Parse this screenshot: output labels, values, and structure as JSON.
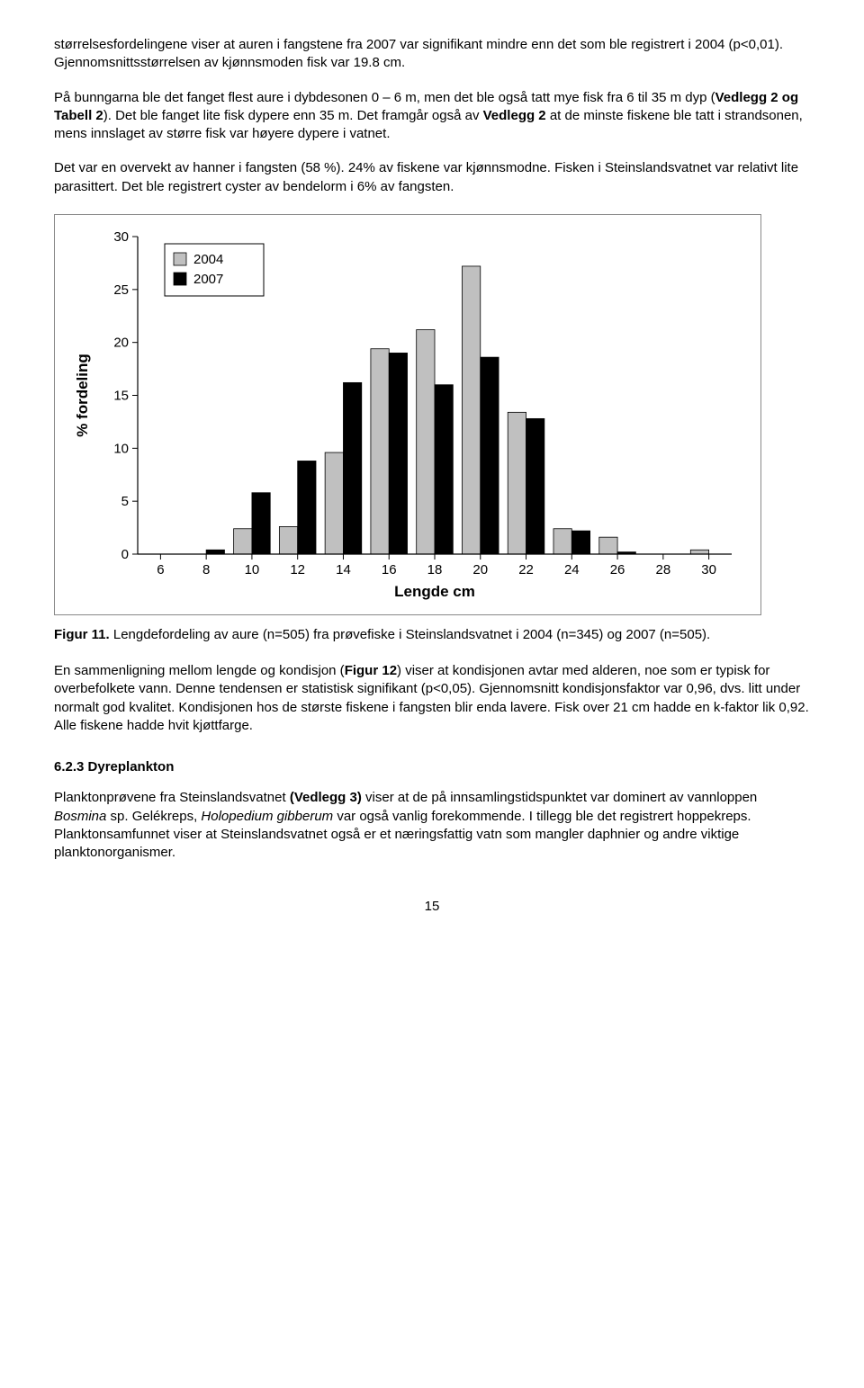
{
  "para1": "størrelsesfordelingene viser at auren i fangstene fra 2007 var signifikant mindre enn det som ble registrert i 2004 (p<0,01). Gjennomsnittsstørrelsen av kjønnsmoden fisk var 19.8 cm.",
  "para2_a": "På bunngarna ble det fanget flest aure i dybdesonen 0 – 6 m, men det ble også tatt mye fisk fra 6 til 35 m dyp (",
  "para2_b1": "Vedlegg 2 og Tabell 2",
  "para2_c": "). Det ble fanget lite fisk dypere enn 35 m. Det framgår også av ",
  "para2_b2": "Vedlegg 2",
  "para2_d": " at de minste fiskene ble tatt i strandsonen, mens innslaget av større fisk var høyere dypere i vatnet.",
  "para3": "Det var en overvekt av hanner i fangsten (58 %). 24% av fiskene var kjønnsmodne. Fisken i Steinslandsvatnet var relativt lite parasittert. Det ble registrert cyster av bendelorm i 6% av fangsten.",
  "chart": {
    "type": "bar",
    "categories": [
      6,
      8,
      10,
      12,
      14,
      16,
      18,
      20,
      22,
      24,
      26,
      28,
      30
    ],
    "series": [
      {
        "name": "2004",
        "color": "#c0c0c0",
        "stroke": "#000000",
        "values": [
          0,
          0,
          2.4,
          2.6,
          9.6,
          19.4,
          21.2,
          27.2,
          13.4,
          2.4,
          1.6,
          0,
          0.4
        ]
      },
      {
        "name": "2007",
        "color": "#000000",
        "stroke": "#000000",
        "values": [
          0,
          0.4,
          5.8,
          8.8,
          16.2,
          19.0,
          16.0,
          18.6,
          12.8,
          2.2,
          0.2,
          0,
          0
        ]
      }
    ],
    "x_label": "Lengde cm",
    "y_label": "% fordeling",
    "y_ticks": [
      0,
      5,
      10,
      15,
      20,
      25,
      30
    ],
    "ylim": [
      0,
      30
    ],
    "bar_group_gap": 0.2,
    "bar_within_gap": 0.0,
    "axis_color": "#000000",
    "grid": false,
    "background": "#ffffff",
    "legend_border": "#000000",
    "legend_bg": "#ffffff",
    "title_fontsize": 14,
    "axis_label_fontsize": 17,
    "tick_fontsize": 15
  },
  "caption_a": "Figur 11.",
  "caption_b": " Lengdefordeling av aure (n=505) fra prøvefiske i Steinslandsvatnet i 2004 (n=345) og 2007 (n=505).",
  "para4_a": "En sammenligning mellom lengde og kondisjon (",
  "para4_b": "Figur 12",
  "para4_c": ") viser at kondisjonen avtar med alderen, noe som er typisk for overbefolkete vann. Denne tendensen er statistisk signifikant (p<0,05). Gjennomsnitt kondisjonsfaktor var 0,96, dvs. litt under normalt god kvalitet. Kondisjonen hos de største fiskene i fangsten blir enda lavere. Fisk over 21 cm hadde en k-faktor lik 0,92. Alle fiskene hadde hvit kjøttfarge.",
  "heading": "6.2.3 Dyreplankton",
  "para5_a": "Planktonprøvene fra Steinslandsvatnet ",
  "para5_b": "(Vedlegg 3)",
  "para5_c": " viser at de på innsamlingstidspunktet var dominert av vannloppen ",
  "para5_i1": "Bosmina",
  "para5_d": " sp. Gelékreps, ",
  "para5_i2": "Holopedium gibberum",
  "para5_e": " var også vanlig forekommende. I tillegg ble det registrert hoppekreps. Planktonsamfunnet viser at Steinslandsvatnet også er et næringsfattig vatn som mangler daphnier og andre viktige planktonorganismer.",
  "page_number": "15"
}
